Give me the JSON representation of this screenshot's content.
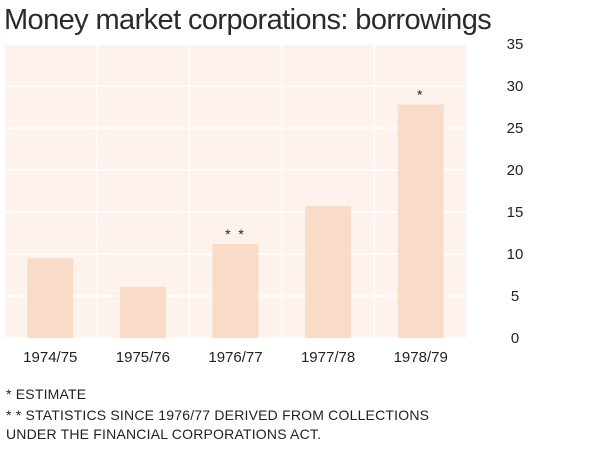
{
  "title": "Money market corporations: borrowings",
  "chart_data": {
    "type": "bar",
    "title": "Money market corporations: borrowings",
    "categories": [
      "1974/75",
      "1975/76",
      "1976/77",
      "1977/78",
      "1978/79"
    ],
    "values": [
      9.5,
      6.1,
      11.2,
      15.7,
      27.8
    ],
    "bar_annotations": [
      "",
      "",
      "* *",
      "",
      "*"
    ],
    "ylim": [
      0,
      35
    ],
    "yticks": [
      0,
      5,
      10,
      15,
      20,
      25,
      30,
      35
    ],
    "y_axis_side": "right",
    "grid": true,
    "colors": {
      "plot_bg": "#fdf3ec",
      "bar": "#f9dcc8",
      "grid": "#ffffff"
    }
  },
  "footnotes": {
    "estimate": "* ESTIMATE",
    "statistics_line1": "* * STATISTICS SINCE 1976/77 DERIVED FROM COLLECTIONS",
    "statistics_line2": "UNDER THE FINANCIAL CORPORATIONS ACT."
  }
}
